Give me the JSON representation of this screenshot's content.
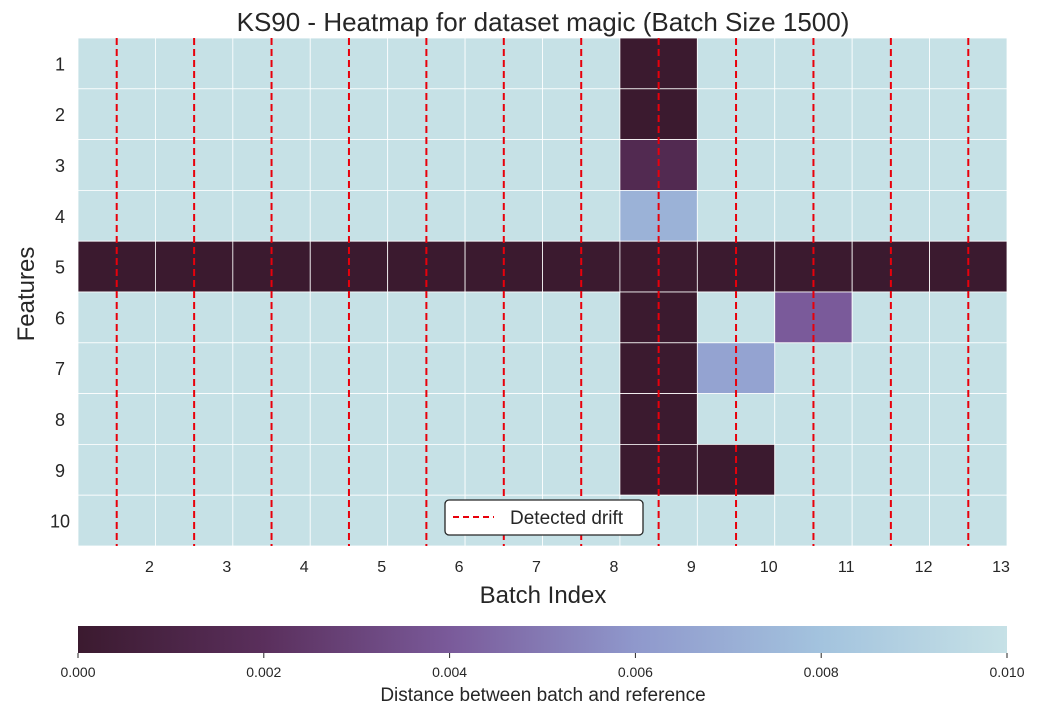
{
  "chart_data": {
    "type": "heatmap",
    "title": "KS90 - Heatmap for dataset magic (Batch Size 1500)",
    "xlabel": "Batch Index",
    "ylabel": "Features",
    "x_tick_labels": [
      "2",
      "3",
      "4",
      "5",
      "6",
      "7",
      "8",
      "9",
      "10",
      "11",
      "12",
      "13"
    ],
    "y_categories": [
      "1",
      "2",
      "3",
      "4",
      "5",
      "6",
      "7",
      "8",
      "9",
      "10"
    ],
    "colorbar": {
      "label": "Distance between batch and reference",
      "range": [
        0.0,
        0.01
      ],
      "ticks": [
        "0.000",
        "0.002",
        "0.004",
        "0.006",
        "0.008",
        "0.010"
      ],
      "colors": [
        "#3b1a2f",
        "#5a2f5c",
        "#7a5a9a",
        "#8f98cc",
        "#a3c3de",
        "#c6e1e6"
      ]
    },
    "values": [
      [
        0.01,
        0.01,
        0.01,
        0.01,
        0.01,
        0.01,
        0.01,
        0.0,
        0.01,
        0.01,
        0.01,
        0.01
      ],
      [
        0.01,
        0.01,
        0.01,
        0.01,
        0.01,
        0.01,
        0.01,
        0.0,
        0.01,
        0.01,
        0.01,
        0.01
      ],
      [
        0.01,
        0.01,
        0.01,
        0.01,
        0.01,
        0.01,
        0.01,
        0.0015,
        0.01,
        0.01,
        0.01,
        0.01
      ],
      [
        0.01,
        0.01,
        0.01,
        0.01,
        0.01,
        0.01,
        0.01,
        0.0072,
        0.01,
        0.01,
        0.01,
        0.01
      ],
      [
        0.0,
        0.0,
        0.0,
        0.0,
        0.0,
        0.0,
        0.0,
        0.0,
        0.0,
        0.0,
        0.0,
        0.0
      ],
      [
        0.01,
        0.01,
        0.01,
        0.01,
        0.01,
        0.01,
        0.01,
        0.0,
        0.01,
        0.004,
        0.01,
        0.01
      ],
      [
        0.01,
        0.01,
        0.01,
        0.01,
        0.01,
        0.01,
        0.01,
        0.0,
        0.0065,
        0.01,
        0.01,
        0.01
      ],
      [
        0.01,
        0.01,
        0.01,
        0.01,
        0.01,
        0.01,
        0.01,
        0.0,
        0.01,
        0.01,
        0.01,
        0.01
      ],
      [
        0.01,
        0.01,
        0.01,
        0.01,
        0.01,
        0.01,
        0.01,
        0.0,
        0.0,
        0.01,
        0.01,
        0.01
      ],
      [
        0.01,
        0.01,
        0.01,
        0.01,
        0.01,
        0.01,
        0.01,
        0.01,
        0.01,
        0.01,
        0.01,
        0.01
      ]
    ],
    "detected_drift_batches": [
      2,
      3,
      4,
      5,
      6,
      7,
      8,
      9,
      10,
      11,
      12,
      13
    ],
    "drift_line_color": "#e8000b",
    "legend": {
      "entries": [
        "Detected drift"
      ],
      "position": "lower center"
    },
    "grid": true
  }
}
